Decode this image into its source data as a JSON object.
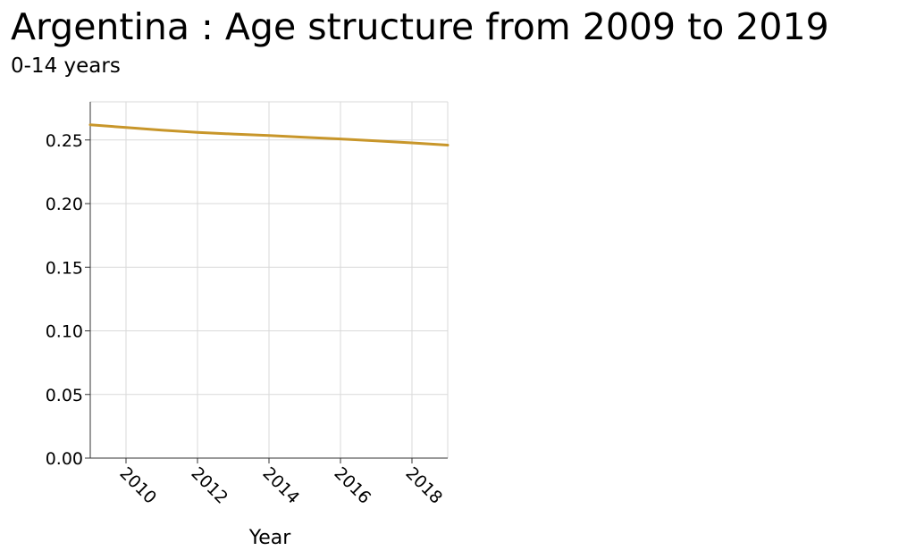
{
  "chart_data": {
    "type": "line",
    "title": "Argentina : Age structure from 2009 to 2019",
    "subtitle": "0-14 years",
    "xlabel": "Year",
    "ylabel": "",
    "xlim": [
      2009,
      2019
    ],
    "ylim": [
      0,
      0.28
    ],
    "x_ticks": [
      2010,
      2012,
      2014,
      2016,
      2018
    ],
    "y_ticks": [
      "0.00",
      "0.05",
      "0.10",
      "0.15",
      "0.20",
      "0.25"
    ],
    "grid": true,
    "series": [
      {
        "color": "#c8962a",
        "x": [
          2009,
          2010,
          2011,
          2012,
          2013,
          2014,
          2015,
          2016,
          2017,
          2018,
          2019
        ],
        "y": [
          0.262,
          0.2598,
          0.2577,
          0.256,
          0.2547,
          0.2535,
          0.2521,
          0.2508,
          0.2493,
          0.2477,
          0.246
        ]
      }
    ]
  }
}
